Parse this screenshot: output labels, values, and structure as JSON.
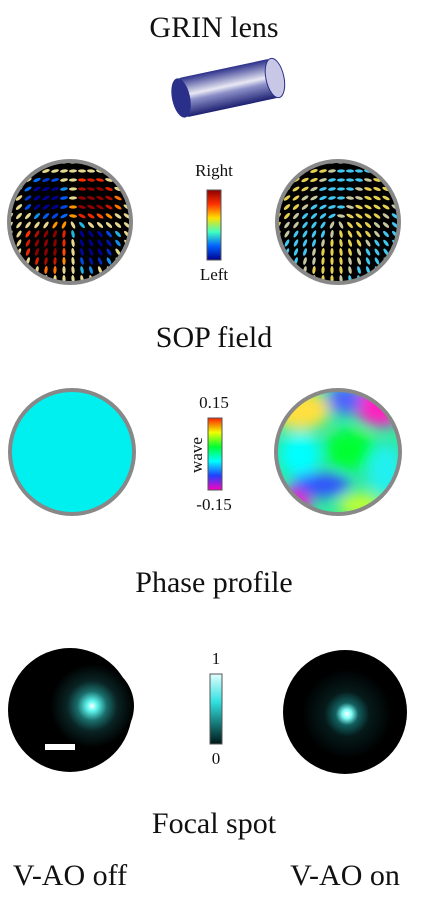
{
  "header": {
    "title": "GRIN lens"
  },
  "sop": {
    "colorbar_top": "Right",
    "colorbar_bottom": "Left",
    "caption": "SOP field"
  },
  "phase": {
    "colorbar_top": "0.15",
    "colorbar_label": "wave",
    "colorbar_bottom": "-0.15",
    "caption": "Phase profile"
  },
  "focal": {
    "colorbar_top": "1",
    "colorbar_bottom": "0",
    "caption": "Focal spot"
  },
  "columns": [
    "V-AO off",
    "V-AO on"
  ]
}
